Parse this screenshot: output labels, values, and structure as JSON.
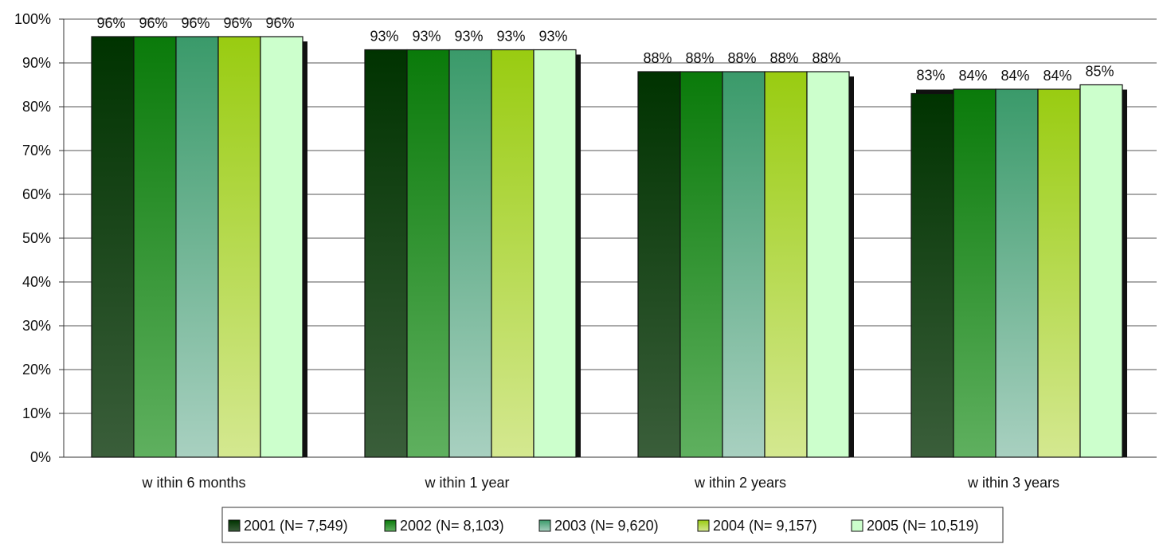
{
  "chart_data": {
    "type": "bar",
    "title": "",
    "xlabel": "",
    "ylabel": "",
    "ylim": [
      0,
      100
    ],
    "y_ticks": [
      "0%",
      "10%",
      "20%",
      "30%",
      "40%",
      "50%",
      "60%",
      "70%",
      "80%",
      "90%",
      "100%"
    ],
    "y_tick_values": [
      0,
      10,
      20,
      30,
      40,
      50,
      60,
      70,
      80,
      90,
      100
    ],
    "grid": true,
    "legend_position": "bottom",
    "categories": [
      "w ithin 6 months",
      "w ithin 1 year",
      "w ithin 2 years",
      "w ithin 3 years"
    ],
    "series": [
      {
        "name": "2001 (N= 7,549)",
        "values": [
          96,
          93,
          88,
          83
        ],
        "labels": [
          "96%",
          "93%",
          "88%",
          "83%"
        ],
        "color_top": "#003300",
        "color_bottom": "#3a5e3a"
      },
      {
        "name": "2002 (N= 8,103)",
        "values": [
          96,
          93,
          88,
          84
        ],
        "labels": [
          "96%",
          "93%",
          "88%",
          "84%"
        ],
        "color_top": "#0a7a0a",
        "color_bottom": "#5fb05f"
      },
      {
        "name": "2003 (N= 9,620)",
        "values": [
          96,
          93,
          88,
          84
        ],
        "labels": [
          "96%",
          "93%",
          "88%",
          "84%"
        ],
        "color_top": "#3a9a6a",
        "color_bottom": "#a8d0c0"
      },
      {
        "name": "2004 (N= 9,157)",
        "values": [
          96,
          93,
          88,
          84
        ],
        "labels": [
          "96%",
          "93%",
          "88%",
          "84%"
        ],
        "color_top": "#99cc11",
        "color_bottom": "#d4e890"
      },
      {
        "name": "2005 (N= 10,519)",
        "values": [
          96,
          93,
          88,
          85
        ],
        "labels": [
          "96%",
          "93%",
          "88%",
          "85%"
        ],
        "color_top": "#ccffcc",
        "color_bottom": "#ccffcc"
      }
    ]
  }
}
